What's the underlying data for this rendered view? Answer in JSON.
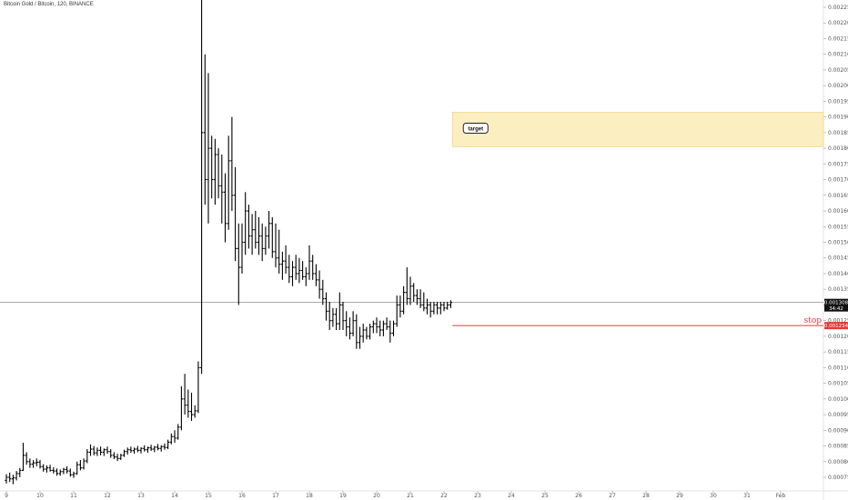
{
  "chart_data": {
    "type": "ohlc",
    "title": "Bitcoin Gold / Bitcoin, 120, BINANCE",
    "xlabel": "",
    "ylabel": "",
    "ylim": [
      0.00071,
      0.00231
    ],
    "xlim": [
      9.0,
      32.4
    ],
    "x_ticks": [
      {
        "x": 9,
        "label": "9"
      },
      {
        "x": 10,
        "label": "10"
      },
      {
        "x": 11,
        "label": "11"
      },
      {
        "x": 12,
        "label": "12"
      },
      {
        "x": 13,
        "label": "13"
      },
      {
        "x": 14,
        "label": "14"
      },
      {
        "x": 15,
        "label": "15"
      },
      {
        "x": 16,
        "label": "16"
      },
      {
        "x": 17,
        "label": "17"
      },
      {
        "x": 18,
        "label": "18"
      },
      {
        "x": 19,
        "label": "19"
      },
      {
        "x": 20,
        "label": "20"
      },
      {
        "x": 21,
        "label": "21"
      },
      {
        "x": 22,
        "label": "22"
      },
      {
        "x": 23,
        "label": "23"
      },
      {
        "x": 24,
        "label": "24"
      },
      {
        "x": 25,
        "label": "25"
      },
      {
        "x": 26,
        "label": "26"
      },
      {
        "x": 27,
        "label": "27"
      },
      {
        "x": 28,
        "label": "28"
      },
      {
        "x": 29,
        "label": "29"
      },
      {
        "x": 30,
        "label": "30"
      },
      {
        "x": 31,
        "label": "31"
      },
      {
        "x": 32,
        "label": "Feb"
      }
    ],
    "y_ticks": [
      "0.002250",
      "0.002200",
      "0.002150",
      "0.002100",
      "0.002050",
      "0.002000",
      "0.001950",
      "0.001900",
      "0.001850",
      "0.001800",
      "0.001750",
      "0.001700",
      "0.001650",
      "0.001600",
      "0.001550",
      "0.001500",
      "0.001450",
      "0.001400",
      "0.001350",
      "0.001300",
      "0.001250",
      "0.001200",
      "0.001150",
      "0.001100",
      "0.001050",
      "0.001000",
      "0.000950",
      "0.000900",
      "0.000850",
      "0.000800",
      "0.000750"
    ],
    "current_price": {
      "value": 0.001308,
      "label": "0.001308",
      "countdown": "34:42"
    },
    "stop": {
      "value": 0.001234,
      "label": "0.001234",
      "text": "stop",
      "x_start": 22.25
    },
    "target": {
      "text": "target",
      "y_low": 0.001805,
      "y_high": 0.001915,
      "x_start": 22.25
    },
    "colors": {
      "bars": "#000000",
      "stop": "#e53935",
      "target_fill": "#fbeec0",
      "target_border": "#f0d98a",
      "current_line": "#777777"
    },
    "series": [
      {
        "values": [
          [
            9.0,
            0.00074,
            0.00076,
            0.00073,
            0.00075
          ],
          [
            9.1,
            0.00075,
            0.000765,
            0.000735,
            0.000745
          ],
          [
            9.2,
            0.000745,
            0.000758,
            0.000728,
            0.000748
          ],
          [
            9.3,
            0.000748,
            0.00077,
            0.00074,
            0.000762
          ],
          [
            9.4,
            0.000762,
            0.00078,
            0.00075,
            0.000772
          ],
          [
            9.5,
            0.000772,
            0.00086,
            0.00077,
            0.00082
          ],
          [
            9.6,
            0.00082,
            0.00083,
            0.00079,
            0.0008
          ],
          [
            9.7,
            0.0008,
            0.00081,
            0.00078,
            0.000792
          ],
          [
            9.8,
            0.000792,
            0.000805,
            0.00078,
            0.000796
          ],
          [
            9.9,
            0.000796,
            0.00081,
            0.000785,
            0.000798
          ],
          [
            10.0,
            0.000798,
            0.000805,
            0.000778,
            0.000784
          ],
          [
            10.1,
            0.000784,
            0.000792,
            0.000768,
            0.000776
          ],
          [
            10.2,
            0.000776,
            0.000788,
            0.000765,
            0.00078
          ],
          [
            10.3,
            0.00078,
            0.00079,
            0.000768,
            0.000772
          ],
          [
            10.4,
            0.000772,
            0.000782,
            0.000762,
            0.00077
          ],
          [
            10.5,
            0.00077,
            0.000778,
            0.000755,
            0.000762
          ],
          [
            10.6,
            0.000762,
            0.000775,
            0.000755,
            0.000768
          ],
          [
            10.7,
            0.000768,
            0.00078,
            0.00076,
            0.000775
          ],
          [
            10.8,
            0.000775,
            0.000785,
            0.000762,
            0.00077
          ],
          [
            10.9,
            0.00077,
            0.000778,
            0.000752,
            0.000758
          ],
          [
            11.0,
            0.000758,
            0.000768,
            0.000748,
            0.000762
          ],
          [
            11.1,
            0.000762,
            0.0008,
            0.000758,
            0.00079
          ],
          [
            11.2,
            0.00079,
            0.000805,
            0.000772,
            0.00078
          ],
          [
            11.3,
            0.00078,
            0.00081,
            0.000775,
            0.000802
          ],
          [
            11.4,
            0.000802,
            0.00084,
            0.000795,
            0.00083
          ],
          [
            11.5,
            0.00083,
            0.000855,
            0.000818,
            0.00084
          ],
          [
            11.6,
            0.00084,
            0.00085,
            0.00082,
            0.000828
          ],
          [
            11.7,
            0.000828,
            0.000845,
            0.000818,
            0.000836
          ],
          [
            11.8,
            0.000836,
            0.000848,
            0.00082,
            0.00083
          ],
          [
            11.9,
            0.00083,
            0.000842,
            0.000818,
            0.000838
          ],
          [
            12.0,
            0.000838,
            0.000848,
            0.000825,
            0.000832
          ],
          [
            12.1,
            0.000832,
            0.00084,
            0.000812,
            0.00082
          ],
          [
            12.2,
            0.00082,
            0.00083,
            0.000808,
            0.000815
          ],
          [
            12.3,
            0.000815,
            0.000825,
            0.000802,
            0.00081
          ],
          [
            12.4,
            0.00081,
            0.000825,
            0.000805,
            0.00082
          ],
          [
            12.5,
            0.00082,
            0.000838,
            0.000815,
            0.000832
          ],
          [
            12.6,
            0.000832,
            0.000845,
            0.000822,
            0.000838
          ],
          [
            12.7,
            0.000838,
            0.000848,
            0.000828,
            0.000835
          ],
          [
            12.8,
            0.000835,
            0.000845,
            0.000825,
            0.00084
          ],
          [
            12.9,
            0.00084,
            0.00085,
            0.00083,
            0.000836
          ],
          [
            13.0,
            0.000836,
            0.000846,
            0.000826,
            0.000842
          ],
          [
            13.1,
            0.000842,
            0.000852,
            0.000832,
            0.000838
          ],
          [
            13.2,
            0.000838,
            0.000848,
            0.000828,
            0.000844
          ],
          [
            13.3,
            0.000844,
            0.000854,
            0.000834,
            0.00084
          ],
          [
            13.4,
            0.00084,
            0.00085,
            0.00083,
            0.000846
          ],
          [
            13.5,
            0.000846,
            0.000856,
            0.000836,
            0.000842
          ],
          [
            13.6,
            0.000842,
            0.000852,
            0.000832,
            0.000848
          ],
          [
            13.7,
            0.000848,
            0.000858,
            0.000838,
            0.000845
          ],
          [
            13.8,
            0.000845,
            0.00087,
            0.00084,
            0.000862
          ],
          [
            13.9,
            0.000862,
            0.00089,
            0.000855,
            0.00088
          ],
          [
            14.0,
            0.00088,
            0.0009,
            0.00086,
            0.000875
          ],
          [
            14.1,
            0.000875,
            0.00092,
            0.00087,
            0.00091
          ],
          [
            14.2,
            0.00091,
            0.00104,
            0.0009,
            0.001
          ],
          [
            14.3,
            0.001,
            0.00108,
            0.00095,
            0.00098
          ],
          [
            14.4,
            0.00098,
            0.00103,
            0.00094,
            0.00096
          ],
          [
            14.5,
            0.00096,
            0.00102,
            0.00093,
            0.00095
          ],
          [
            14.6,
            0.00095,
            0.00098,
            0.00094,
            0.000962
          ],
          [
            14.7,
            0.000962,
            0.00112,
            0.000955,
            0.0011
          ],
          [
            14.8,
            0.0011,
            0.00232,
            0.00108,
            0.00185
          ],
          [
            14.9,
            0.00185,
            0.0021,
            0.00162,
            0.0017
          ],
          [
            15.0,
            0.0017,
            0.00204,
            0.00156,
            0.0018
          ],
          [
            15.1,
            0.0018,
            0.00184,
            0.00164,
            0.0017
          ],
          [
            15.2,
            0.0017,
            0.00183,
            0.00162,
            0.00178
          ],
          [
            15.3,
            0.00178,
            0.0018,
            0.00164,
            0.00168
          ],
          [
            15.4,
            0.00168,
            0.00178,
            0.00156,
            0.00166
          ],
          [
            15.5,
            0.00166,
            0.00172,
            0.0015,
            0.00156
          ],
          [
            15.6,
            0.00156,
            0.00184,
            0.00154,
            0.00176
          ],
          [
            15.7,
            0.00176,
            0.0019,
            0.0016,
            0.00165
          ],
          [
            15.8,
            0.00165,
            0.00174,
            0.00144,
            0.00148
          ],
          [
            15.9,
            0.00148,
            0.00156,
            0.0013,
            0.00142
          ],
          [
            16.0,
            0.00142,
            0.00156,
            0.0014,
            0.0015
          ],
          [
            16.1,
            0.0015,
            0.00166,
            0.00146,
            0.0016
          ],
          [
            16.2,
            0.0016,
            0.00162,
            0.00148,
            0.00152
          ],
          [
            16.3,
            0.00152,
            0.00159,
            0.00146,
            0.00154
          ],
          [
            16.4,
            0.00154,
            0.0016,
            0.00148,
            0.0015
          ],
          [
            16.5,
            0.0015,
            0.00158,
            0.00146,
            0.00152
          ],
          [
            16.6,
            0.00152,
            0.00156,
            0.00144,
            0.00148
          ],
          [
            16.7,
            0.00148,
            0.00155,
            0.00146,
            0.00152
          ],
          [
            16.8,
            0.00152,
            0.0016,
            0.00148,
            0.00156
          ],
          [
            16.9,
            0.00156,
            0.00158,
            0.00145,
            0.00147
          ],
          [
            17.0,
            0.00147,
            0.00156,
            0.00142,
            0.00145
          ],
          [
            17.1,
            0.00145,
            0.00154,
            0.0014,
            0.00143
          ],
          [
            17.2,
            0.00143,
            0.00147,
            0.00138,
            0.00144
          ],
          [
            17.3,
            0.00144,
            0.00149,
            0.0014,
            0.00142
          ],
          [
            17.4,
            0.00142,
            0.00146,
            0.00137,
            0.00139
          ],
          [
            17.5,
            0.00139,
            0.00144,
            0.00136,
            0.00142
          ],
          [
            17.6,
            0.00142,
            0.00146,
            0.00138,
            0.0014
          ],
          [
            17.7,
            0.0014,
            0.00145,
            0.00137,
            0.00141
          ],
          [
            17.8,
            0.00141,
            0.00144,
            0.00138,
            0.00139
          ],
          [
            17.9,
            0.00139,
            0.00142,
            0.00136,
            0.0014
          ],
          [
            18.0,
            0.0014,
            0.00149,
            0.00138,
            0.00144
          ],
          [
            18.1,
            0.00144,
            0.00146,
            0.00138,
            0.0014
          ],
          [
            18.2,
            0.0014,
            0.00143,
            0.00136,
            0.00138
          ],
          [
            18.3,
            0.00138,
            0.00141,
            0.00132,
            0.00135
          ],
          [
            18.4,
            0.00135,
            0.00138,
            0.0013,
            0.00132
          ],
          [
            18.5,
            0.00132,
            0.00134,
            0.00125,
            0.00128
          ],
          [
            18.6,
            0.00128,
            0.00131,
            0.00122,
            0.00125
          ],
          [
            18.7,
            0.00125,
            0.00129,
            0.00123,
            0.00127
          ],
          [
            18.8,
            0.00127,
            0.00129,
            0.00122,
            0.00124
          ],
          [
            18.9,
            0.00124,
            0.00134,
            0.00122,
            0.0013
          ],
          [
            19.0,
            0.0013,
            0.00131,
            0.00122,
            0.00125
          ],
          [
            19.1,
            0.00125,
            0.00128,
            0.0012,
            0.00123
          ],
          [
            19.2,
            0.00123,
            0.00126,
            0.00119,
            0.00121
          ],
          [
            19.3,
            0.00121,
            0.00128,
            0.0012,
            0.00125
          ],
          [
            19.4,
            0.00125,
            0.00127,
            0.00116,
            0.00118
          ],
          [
            19.5,
            0.00118,
            0.00123,
            0.00116,
            0.0012
          ],
          [
            19.6,
            0.0012,
            0.00124,
            0.00118,
            0.00122
          ],
          [
            19.7,
            0.00122,
            0.00123,
            0.00119,
            0.0012
          ],
          [
            19.8,
            0.0012,
            0.00124,
            0.00119,
            0.00123
          ],
          [
            19.9,
            0.00123,
            0.00125,
            0.00121,
            0.00124
          ],
          [
            20.0,
            0.00124,
            0.00126,
            0.00121,
            0.00123
          ],
          [
            20.1,
            0.00123,
            0.00125,
            0.0012,
            0.00122
          ],
          [
            20.2,
            0.00122,
            0.00125,
            0.0012,
            0.00124
          ],
          [
            20.3,
            0.00124,
            0.00126,
            0.00122,
            0.00123
          ],
          [
            20.4,
            0.00123,
            0.00125,
            0.00118,
            0.00121
          ],
          [
            20.5,
            0.00121,
            0.00125,
            0.0012,
            0.00124
          ],
          [
            20.6,
            0.00124,
            0.00133,
            0.00123,
            0.0013
          ],
          [
            20.7,
            0.0013,
            0.00133,
            0.00126,
            0.00128
          ],
          [
            20.8,
            0.00128,
            0.00136,
            0.00127,
            0.00134
          ],
          [
            20.9,
            0.00134,
            0.00142,
            0.0013,
            0.00132
          ],
          [
            21.0,
            0.00132,
            0.00139,
            0.0013,
            0.00136
          ],
          [
            21.1,
            0.00136,
            0.00137,
            0.00131,
            0.00133
          ],
          [
            21.2,
            0.00133,
            0.00135,
            0.0013,
            0.00132
          ],
          [
            21.3,
            0.00132,
            0.00135,
            0.00129,
            0.0013
          ],
          [
            21.4,
            0.0013,
            0.00134,
            0.00128,
            0.00129
          ],
          [
            21.5,
            0.00129,
            0.00132,
            0.00127,
            0.0013
          ],
          [
            21.6,
            0.0013,
            0.00131,
            0.00126,
            0.00128
          ],
          [
            21.7,
            0.00128,
            0.00131,
            0.00127,
            0.0013
          ],
          [
            21.8,
            0.0013,
            0.00131,
            0.00127,
            0.00129
          ],
          [
            21.9,
            0.00129,
            0.00131,
            0.00127,
            0.0013
          ],
          [
            22.0,
            0.0013,
            0.00131,
            0.00128,
            0.00129
          ],
          [
            22.1,
            0.00129,
            0.00131,
            0.001285,
            0.0013
          ],
          [
            22.2,
            0.0013,
            0.001315,
            0.00129,
            0.001308
          ]
        ]
      }
    ]
  }
}
